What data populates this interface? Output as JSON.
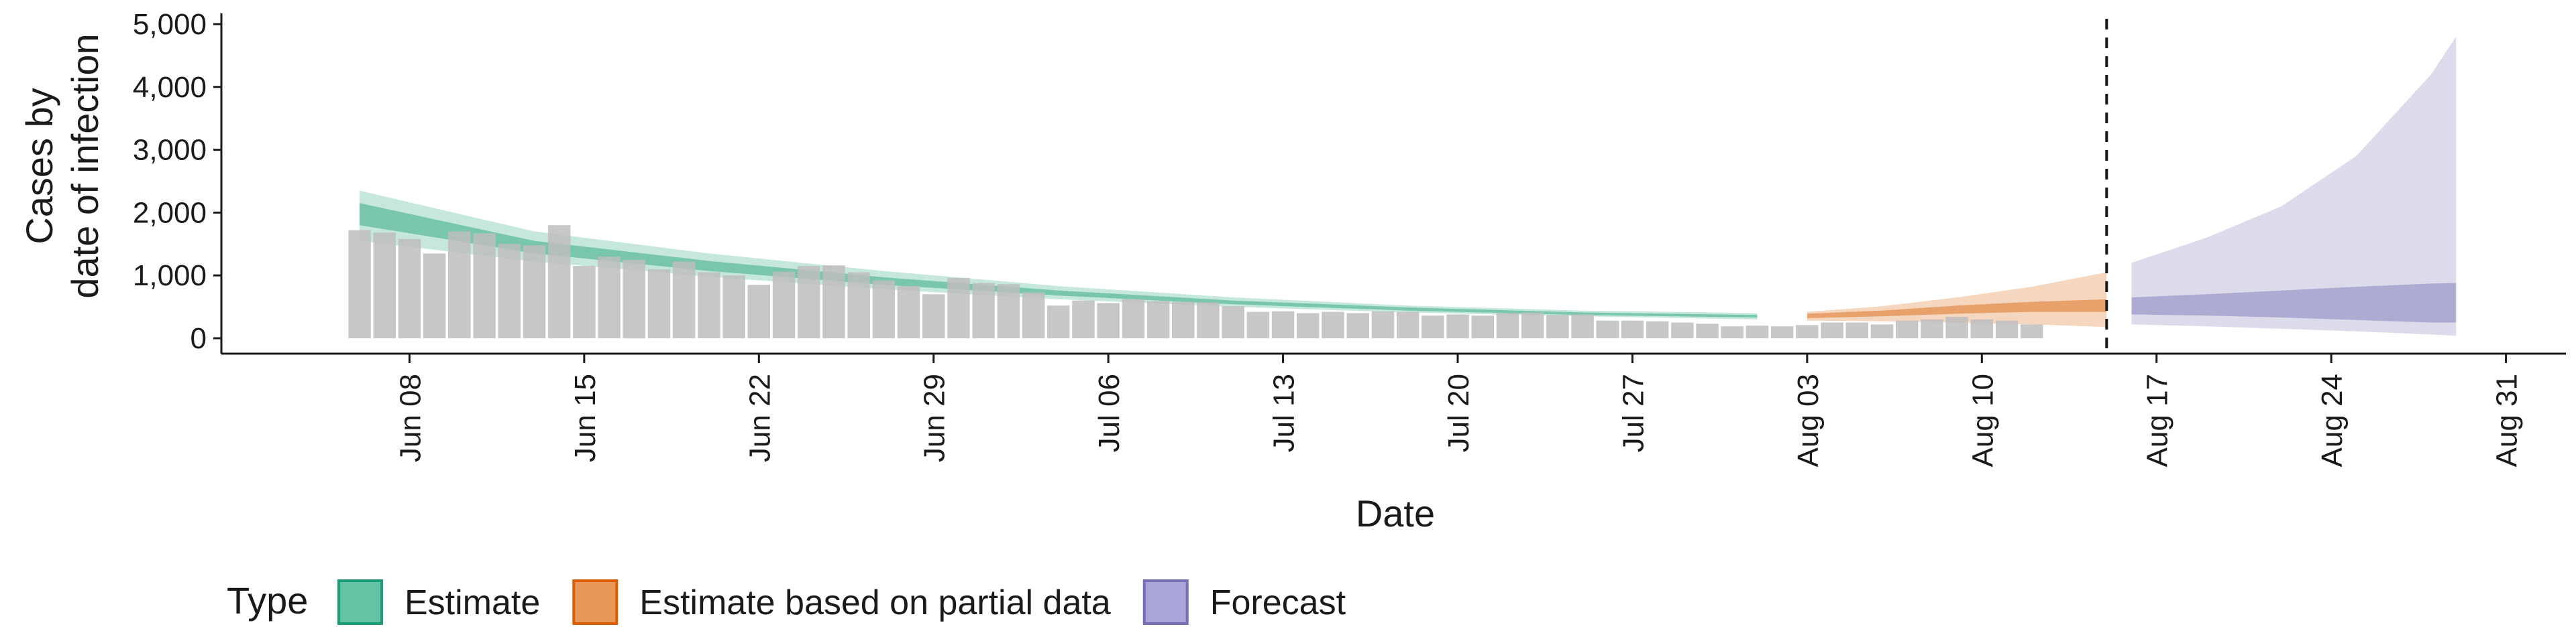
{
  "chart_data": {
    "type": "bar",
    "xlabel": "Date",
    "ylabel_lines": [
      "Cases by",
      "date of infection"
    ],
    "ylim": [
      0,
      5000
    ],
    "y_ticks": [
      0,
      1000,
      2000,
      3000,
      4000,
      5000
    ],
    "y_tick_labels": [
      "0",
      "1,000",
      "2,000",
      "3,000",
      "4,000",
      "5,000"
    ],
    "x_range": [
      "2020-06-01",
      "2020-09-02"
    ],
    "x_ticks": [
      "2020-06-08",
      "2020-06-15",
      "2020-06-22",
      "2020-06-29",
      "2020-07-06",
      "2020-07-13",
      "2020-07-20",
      "2020-07-27",
      "2020-08-03",
      "2020-08-10",
      "2020-08-17",
      "2020-08-24",
      "2020-08-31"
    ],
    "x_tick_labels": [
      "Jun 08",
      "Jun 15",
      "Jun 22",
      "Jun 29",
      "Jul 06",
      "Jul 13",
      "Jul 20",
      "Jul 27",
      "Aug 03",
      "Aug 10",
      "Aug 17",
      "Aug 24",
      "Aug 31"
    ],
    "cutoff_date": "2020-08-15",
    "legend": {
      "title": "Type",
      "position": "bottom",
      "entries": [
        {
          "label": "Estimate",
          "color": "#66c2a5",
          "border": "#1b9e77"
        },
        {
          "label": "Estimate based on partial data",
          "color": "#e9975a",
          "border": "#d95f02"
        },
        {
          "label": "Forecast",
          "color": "#a9a5d6",
          "border": "#7570b3"
        }
      ]
    },
    "bars": {
      "color": "#bdbdbd",
      "start_date": "2020-06-06",
      "values": [
        1720,
        1680,
        1580,
        1350,
        1700,
        1670,
        1500,
        1480,
        1800,
        1150,
        1300,
        1250,
        1100,
        1220,
        1050,
        1000,
        850,
        1060,
        1150,
        1160,
        1050,
        920,
        830,
        700,
        960,
        880,
        860,
        730,
        520,
        600,
        560,
        620,
        590,
        580,
        570,
        510,
        420,
        430,
        400,
        420,
        400,
        430,
        420,
        360,
        380,
        360,
        400,
        410,
        370,
        380,
        280,
        280,
        270,
        250,
        230,
        190,
        200,
        190,
        210,
        250,
        250,
        220,
        280,
        300,
        340,
        300,
        280,
        220
      ]
    },
    "series": [
      {
        "name": "Estimate",
        "color": "#1b9e77",
        "x": [
          "2020-06-06",
          "2020-06-13",
          "2020-06-20",
          "2020-06-27",
          "2020-07-04",
          "2020-07-11",
          "2020-07-18",
          "2020-07-25",
          "2020-08-01"
        ],
        "lower_90": [
          1550,
          1220,
          980,
          780,
          620,
          500,
          410,
          350,
          300
        ],
        "upper_90": [
          2350,
          1700,
          1350,
          1070,
          830,
          650,
          520,
          440,
          400
        ],
        "lower_50": [
          1800,
          1350,
          1070,
          850,
          680,
          540,
          440,
          370,
          330
        ],
        "upper_50": [
          2150,
          1550,
          1230,
          970,
          760,
          600,
          490,
          410,
          370
        ]
      },
      {
        "name": "Estimate based on partial data",
        "color": "#d95f02",
        "x": [
          "2020-08-03",
          "2020-08-06",
          "2020-08-09",
          "2020-08-12",
          "2020-08-15"
        ],
        "lower_90": [
          280,
          270,
          250,
          220,
          180
        ],
        "upper_90": [
          420,
          510,
          650,
          820,
          1050
        ],
        "lower_50": [
          320,
          350,
          390,
          420,
          420
        ],
        "upper_50": [
          390,
          440,
          520,
          580,
          620
        ]
      },
      {
        "name": "Forecast",
        "color": "#7570b3",
        "x": [
          "2020-08-16",
          "2020-08-19",
          "2020-08-22",
          "2020-08-25",
          "2020-08-28",
          "2020-08-29"
        ],
        "lower_90": [
          220,
          190,
          150,
          110,
          60,
          40
        ],
        "upper_90": [
          1200,
          1600,
          2100,
          2900,
          4200,
          4800
        ],
        "lower_50": [
          380,
          360,
          330,
          290,
          250,
          250
        ],
        "upper_50": [
          650,
          700,
          760,
          820,
          870,
          880
        ]
      }
    ]
  }
}
